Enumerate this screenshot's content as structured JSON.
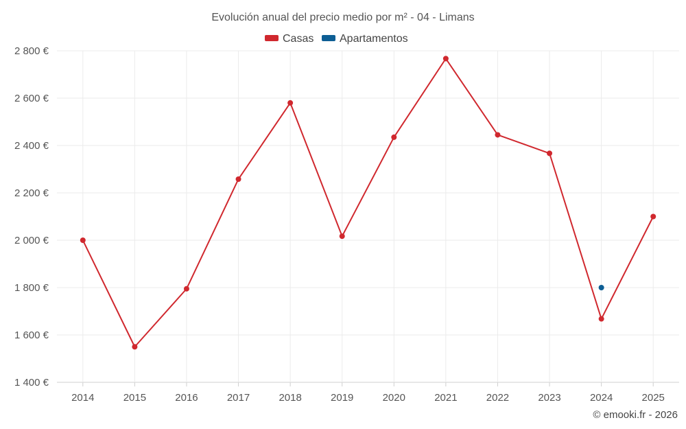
{
  "chart_data": {
    "type": "line",
    "title": "Evolución anual del precio medio por m² - 04 - Limans",
    "categories": [
      "2014",
      "2015",
      "2016",
      "2017",
      "2018",
      "2019",
      "2020",
      "2021",
      "2022",
      "2023",
      "2024",
      "2025"
    ],
    "series": [
      {
        "name": "Casas",
        "color": "#d0282e",
        "values": [
          2000,
          1550,
          1795,
          2258,
          2580,
          2017,
          2435,
          2767,
          2445,
          2367,
          1668,
          2100
        ]
      },
      {
        "name": "Apartamentos",
        "color": "#0d5e94",
        "values": [
          null,
          null,
          null,
          null,
          null,
          null,
          null,
          null,
          null,
          null,
          1800,
          null
        ]
      }
    ],
    "ylim": [
      1400,
      2800
    ],
    "yticks": [
      1400,
      1600,
      1800,
      2000,
      2200,
      2400,
      2600,
      2800
    ],
    "ytick_labels": [
      "1 400 €",
      "1 600 €",
      "1 800 €",
      "2 000 €",
      "2 200 €",
      "2 400 €",
      "2 600 €",
      "2 800 €"
    ],
    "grid": true,
    "legend_position": "top-center",
    "xlabel": "",
    "ylabel": ""
  },
  "credit": "© emooki.fr - 2026"
}
